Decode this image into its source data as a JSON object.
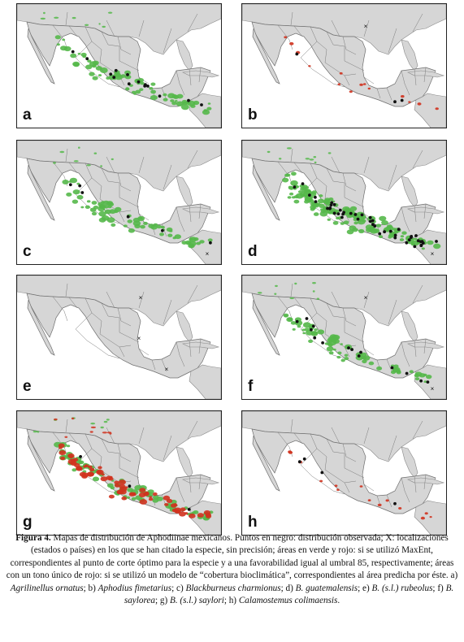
{
  "panels": [
    {
      "letter": "a",
      "colors": {
        "land": "#d6d6d6",
        "sea": "#ffffff",
        "green": "#55b84a",
        "red": "#d0321e"
      },
      "greenLevel": 2,
      "redLevel": 0,
      "dots": 14,
      "x_marks": 0
    },
    {
      "letter": "b",
      "greenLevel": 0,
      "redLevel": 1,
      "dots": 3,
      "x_marks": 1
    },
    {
      "letter": "c",
      "greenLevel": 2,
      "redLevel": 0,
      "dots": 6,
      "x_marks": 1
    },
    {
      "letter": "d",
      "greenLevel": 3,
      "redLevel": 0,
      "dots": 45,
      "x_marks": 1
    },
    {
      "letter": "e",
      "greenLevel": 0,
      "redLevel": 0,
      "dots": 0,
      "x_marks": 3
    },
    {
      "letter": "f",
      "greenLevel": 2,
      "redLevel": 0,
      "dots": 14,
      "x_marks": 2
    },
    {
      "letter": "g",
      "greenLevel": 2,
      "redLevel": 2,
      "dots": 3,
      "x_marks": 0
    },
    {
      "letter": "h",
      "greenLevel": 0,
      "redLevel": 1,
      "dots": 4,
      "x_marks": 0
    }
  ],
  "caption": {
    "label": "Figura 4.",
    "t1": " Mapas de distribución de Aphodiinae mexicanos. Puntos en negro: distribución observada; X: localizaciones (estados o países) en los que se han citado la especie, sin precisión; áreas en verde y rojo: si se utilizó MaxEnt, correspondientes al punto de corte óptimo para la especie y a una favorabilidad igual al umbral 85, respectivamente; áreas con un tono único de rojo: si se utilizó un modelo de “cobertura bioclimática”, correspondientes al área predicha por éste. a) ",
    "s1": "Agrilinellus ornatus",
    "t2": "; b) ",
    "s2": "Aphodius fimetarius",
    "t3": "; c) ",
    "s3": "Blackburneus charmionus",
    "t4": "; d) ",
    "s4": "B. guatemalensis",
    "t5": "; e) ",
    "s5": "B. (s.l.) rubeolus",
    "t6": "; f) ",
    "s6": "B. saylorea",
    "t7": "; g) ",
    "s7": "B. (s.l.) saylori",
    "t8": "; h) ",
    "s8": "Calamostemus colimaensis",
    "t9": "."
  }
}
